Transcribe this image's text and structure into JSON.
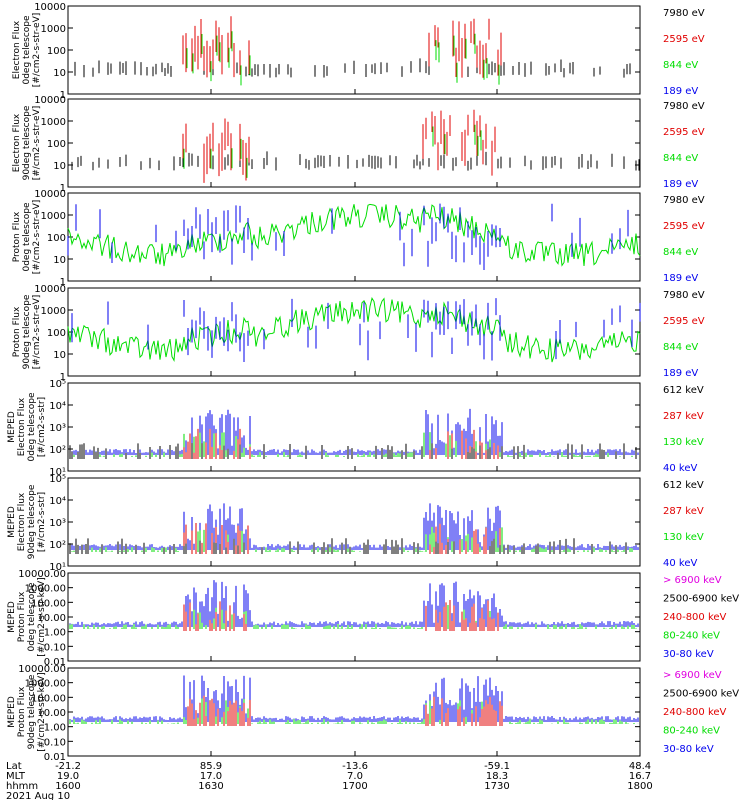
{
  "colors": {
    "black": "#000000",
    "red": "#e00000",
    "green": "#00dd00",
    "blue": "#0000ee",
    "magenta": "#e000e0"
  },
  "chart_data": [
    {
      "type": "line",
      "ylabel": [
        "Electron Flux",
        "0deg telescope",
        "[#/cm2-s-str-eV]"
      ],
      "yscale": "log",
      "ylim": [
        1,
        10000
      ],
      "yticks": [
        "1",
        "10",
        "100",
        "1000",
        "10000"
      ],
      "legend": [
        {
          "label": "7980 eV",
          "color": "black"
        },
        {
          "label": "2595 eV",
          "color": "red"
        },
        {
          "label": "844 eV",
          "color": "green"
        },
        {
          "label": "189 eV",
          "color": "blue"
        }
      ]
    },
    {
      "type": "line",
      "ylabel": [
        "Electron Flux",
        "90deg telescope",
        "[#/cm2-s-str-eV]"
      ],
      "yscale": "log",
      "ylim": [
        1,
        10000
      ],
      "yticks": [
        "1",
        "10",
        "100",
        "1000",
        "10000"
      ],
      "legend": [
        {
          "label": "7980 eV",
          "color": "black"
        },
        {
          "label": "2595 eV",
          "color": "red"
        },
        {
          "label": "844 eV",
          "color": "green"
        },
        {
          "label": "189 eV",
          "color": "blue"
        }
      ]
    },
    {
      "type": "line",
      "ylabel": [
        "Proton Flux",
        "0deg telescope",
        "[#/cm2-s-str-eV]"
      ],
      "yscale": "log",
      "ylim": [
        1,
        10000
      ],
      "yticks": [
        "1",
        "10",
        "100",
        "1000",
        "10000"
      ],
      "legend": [
        {
          "label": "7980 eV",
          "color": "black"
        },
        {
          "label": "2595 eV",
          "color": "red"
        },
        {
          "label": "844 eV",
          "color": "green"
        },
        {
          "label": "189 eV",
          "color": "blue"
        }
      ]
    },
    {
      "type": "line",
      "ylabel": [
        "Proton Flux",
        "90deg telescope",
        "[#/cm2-s-str-eV]"
      ],
      "yscale": "log",
      "ylim": [
        1,
        10000
      ],
      "yticks": [
        "1",
        "10",
        "100",
        "1000",
        "10000"
      ],
      "legend": [
        {
          "label": "7980 eV",
          "color": "black"
        },
        {
          "label": "2595 eV",
          "color": "red"
        },
        {
          "label": "844 eV",
          "color": "green"
        },
        {
          "label": "189 eV",
          "color": "blue"
        }
      ]
    },
    {
      "type": "line",
      "ylabel": [
        "MEPED",
        "Electron Flux",
        "0deg telescope",
        "[#/cm2-s-str]"
      ],
      "yscale": "log",
      "ylim": [
        10,
        100000
      ],
      "yticks": [
        "10¹",
        "10²",
        "10³",
        "10⁴",
        "10⁵"
      ],
      "legend": [
        {
          "label": "612 keV",
          "color": "black"
        },
        {
          "label": "287 keV",
          "color": "red"
        },
        {
          "label": "130 keV",
          "color": "green"
        },
        {
          "label": "40 keV",
          "color": "blue"
        }
      ]
    },
    {
      "type": "line",
      "ylabel": [
        "MEPED",
        "Electron Flux",
        "90deg telescope",
        "[#/cm2-s-str]"
      ],
      "yscale": "log",
      "ylim": [
        10,
        100000
      ],
      "yticks": [
        "10¹",
        "10²",
        "10³",
        "10⁴",
        "10⁵"
      ],
      "legend": [
        {
          "label": "612 keV",
          "color": "black"
        },
        {
          "label": "287 keV",
          "color": "red"
        },
        {
          "label": "130 keV",
          "color": "green"
        },
        {
          "label": "40 keV",
          "color": "blue"
        }
      ]
    },
    {
      "type": "line",
      "ylabel": [
        "MEPED",
        "Proton Flux",
        "0deg telescope",
        "[#/cm2-s-str-keV]"
      ],
      "yscale": "log",
      "ylim": [
        0.01,
        10000
      ],
      "yticks": [
        "0.01",
        "0.10",
        "1.00",
        "10.00",
        "100.00",
        "1000.00",
        "10000.00"
      ],
      "legend": [
        {
          "label": "> 6900 keV",
          "color": "magenta"
        },
        {
          "label": "2500-6900 keV",
          "color": "black"
        },
        {
          "label": "240-800 keV",
          "color": "red"
        },
        {
          "label": "80-240 keV",
          "color": "green"
        },
        {
          "label": "30-80 keV",
          "color": "blue"
        }
      ]
    },
    {
      "type": "line",
      "ylabel": [
        "MEPED",
        "Proton Flux",
        "90deg telescope",
        "[#/cm2-s-str-keV]"
      ],
      "yscale": "log",
      "ylim": [
        0.01,
        10000
      ],
      "yticks": [
        "0.01",
        "0.10",
        "1.00",
        "10.00",
        "100.00",
        "1000.00",
        "10000.00"
      ],
      "legend": [
        {
          "label": "> 6900 keV",
          "color": "magenta"
        },
        {
          "label": "2500-6900 keV",
          "color": "black"
        },
        {
          "label": "240-800 keV",
          "color": "red"
        },
        {
          "label": "80-240 keV",
          "color": "green"
        },
        {
          "label": "30-80 keV",
          "color": "blue"
        }
      ]
    }
  ],
  "x_axis": {
    "row_labels": [
      "Lat",
      "MLT",
      "hhmm"
    ],
    "ticks": [
      {
        "lat": "-21.2",
        "mlt": "19.0",
        "hhmm": "1600"
      },
      {
        "lat": "85.9",
        "mlt": "17.0",
        "hhmm": "1630"
      },
      {
        "lat": "-13.6",
        "mlt": "7.0",
        "hhmm": "1700"
      },
      {
        "lat": "-59.1",
        "mlt": "18.3",
        "hhmm": "1730"
      },
      {
        "lat": "48.4",
        "mlt": "16.7",
        "hhmm": "1800"
      }
    ],
    "date": "2021 Aug 10"
  }
}
